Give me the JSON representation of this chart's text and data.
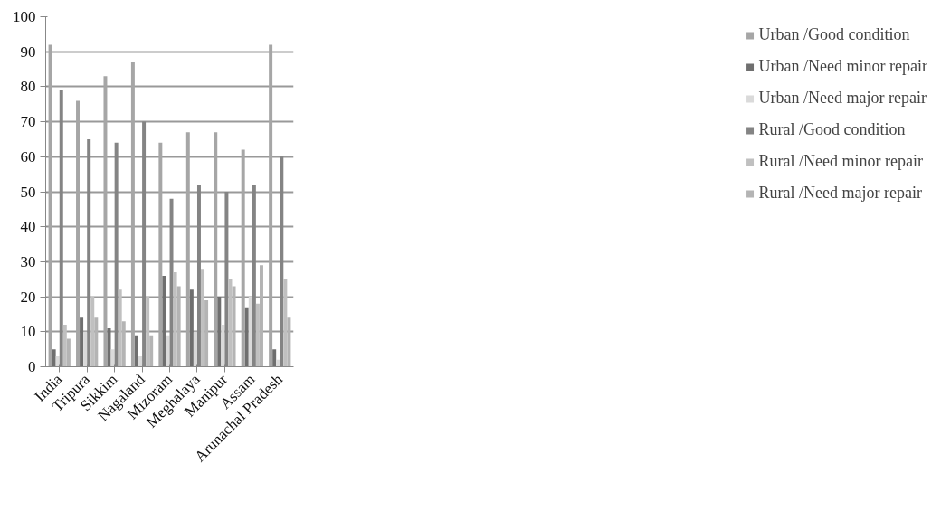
{
  "chart_data": {
    "type": "bar",
    "categories": [
      "India",
      "Tripura",
      "Sikkim",
      "Nagaland",
      "Mizoram",
      "Meghalaya",
      "Manipur",
      "Assam",
      "Arunachal Pradesh"
    ],
    "series": [
      {
        "name": "Urban /Good condition",
        "color": "#a6a6a6",
        "values": [
          92,
          76,
          83,
          87,
          64,
          67,
          67,
          62,
          92
        ]
      },
      {
        "name": "Urban /Need minor repair",
        "color": "#6f6f6f",
        "values": [
          5,
          14,
          11,
          9,
          26,
          22,
          20,
          17,
          5
        ]
      },
      {
        "name": "Urban /Need major repair",
        "color": "#dadada",
        "values": [
          3,
          10,
          5,
          3,
          9,
          10,
          12,
          20,
          2
        ]
      },
      {
        "name": "Rural /Good condition",
        "color": "#848484",
        "values": [
          79,
          65,
          64,
          70,
          48,
          52,
          50,
          52,
          60
        ]
      },
      {
        "name": "Rural /Need minor repair",
        "color": "#c0c0c0",
        "values": [
          12,
          20,
          22,
          20,
          27,
          28,
          25,
          18,
          25
        ]
      },
      {
        "name": "Rural /Need major repair",
        "color": "#b4b4b4",
        "values": [
          8,
          14,
          13,
          9,
          23,
          19,
          23,
          29,
          14
        ]
      }
    ],
    "ylim": [
      0,
      100
    ],
    "yticks": [
      0,
      10,
      20,
      30,
      40,
      50,
      60,
      70,
      80,
      90,
      100
    ],
    "grid": "y",
    "legend": "right"
  }
}
